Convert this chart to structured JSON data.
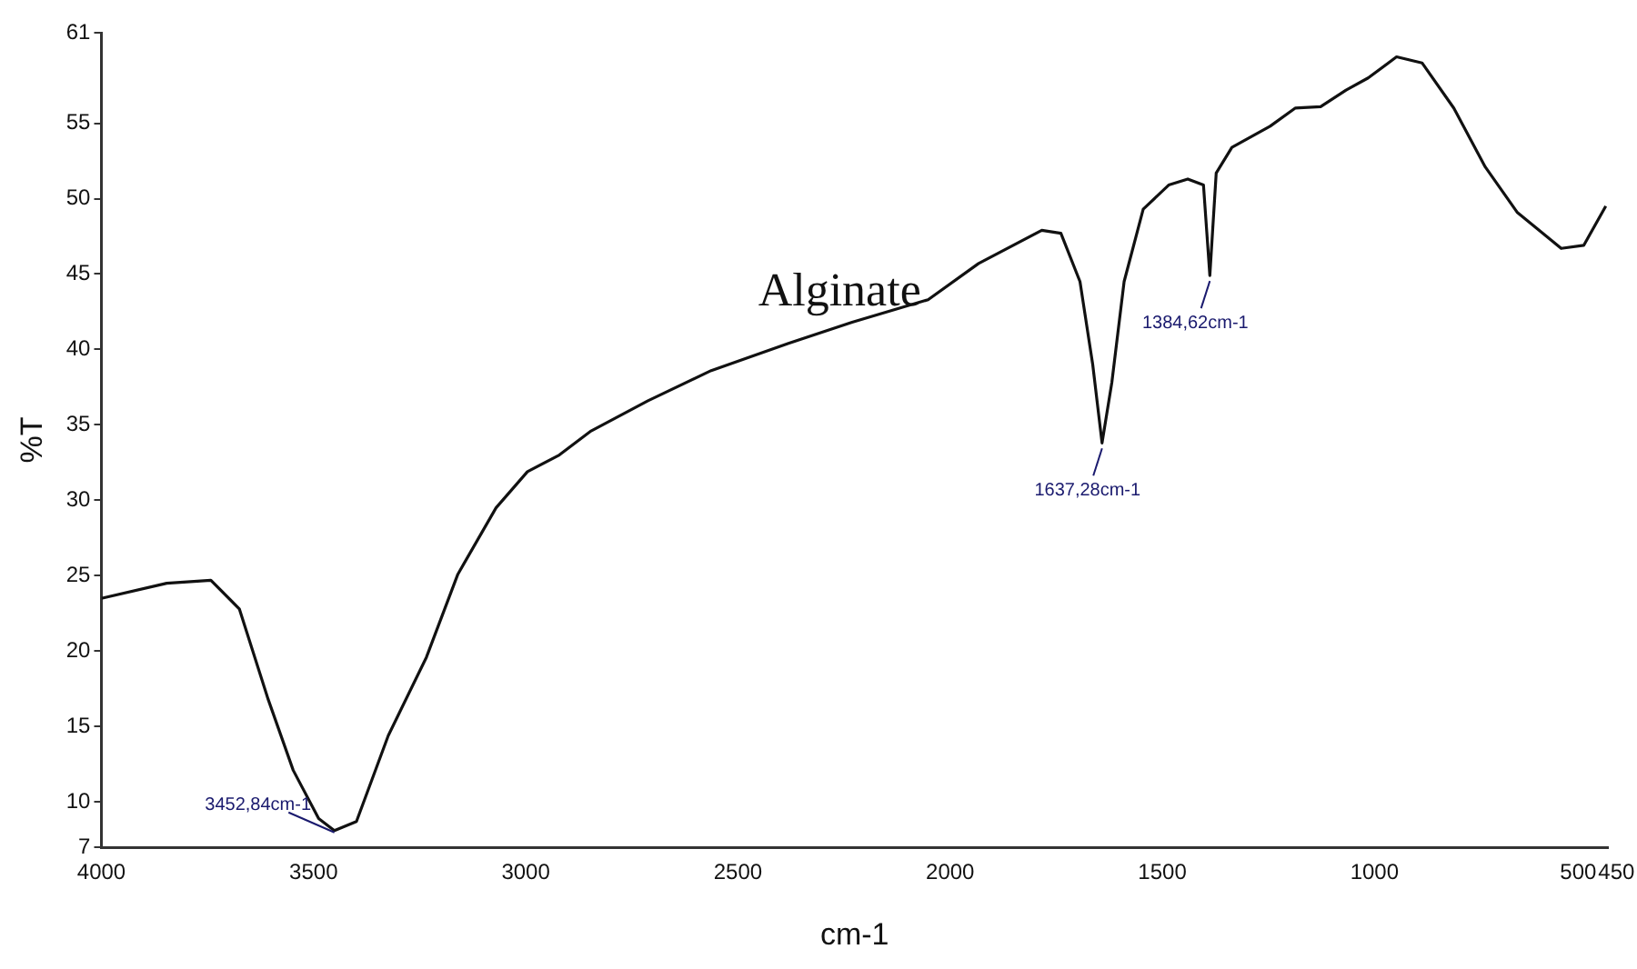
{
  "chart_data": {
    "type": "line",
    "xlabel": "cm-1",
    "ylabel": "%T",
    "xlim": [
      4000,
      450
    ],
    "xticks": [
      4000,
      3500,
      3000,
      2500,
      2000,
      1500,
      1000,
      500,
      450
    ],
    "ylim": [
      7,
      61
    ],
    "yticks": [
      7,
      10,
      15,
      20,
      25,
      30,
      35,
      40,
      45,
      50,
      55,
      61
    ],
    "grid": false,
    "legend": false,
    "marker": "none",
    "line_style": "solid",
    "series": [
      {
        "name": "Alginate",
        "color": "#111111",
        "x": [
          4000,
          3846,
          3742,
          3675,
          3607,
          3548,
          3488,
          3451,
          3399,
          3324,
          3234,
          3160,
          3070,
          2996,
          2921,
          2846,
          2712,
          2563,
          2381,
          2231,
          2052,
          1933,
          1784,
          1739,
          1694,
          1664,
          1642,
          1619,
          1590,
          1545,
          1485,
          1440,
          1403,
          1388,
          1373,
          1336,
          1246,
          1187,
          1127,
          1067,
          1015,
          948,
          888,
          813,
          739,
          664,
          560,
          507,
          455
        ],
        "values": [
          23.5,
          24.5,
          24.7,
          22.8,
          16.8,
          12.1,
          8.9,
          8.1,
          8.7,
          14.4,
          19.6,
          25.1,
          29.5,
          31.9,
          33.0,
          34.6,
          36.6,
          38.6,
          40.4,
          41.8,
          43.3,
          45.7,
          47.9,
          47.7,
          44.5,
          39.0,
          33.8,
          37.8,
          44.5,
          49.3,
          50.9,
          51.3,
          50.9,
          44.9,
          51.7,
          53.4,
          54.8,
          56.0,
          56.1,
          57.2,
          58.0,
          59.4,
          59.0,
          56.0,
          52.1,
          49.1,
          46.7,
          46.9,
          49.5
        ]
      }
    ],
    "annotations": [
      {
        "text": "3452,84cm-1",
        "x": 3451,
        "y": 8.1
      },
      {
        "text": "1637,28cm-1",
        "x": 1642,
        "y": 33.8
      },
      {
        "text": "1384,62cm-1",
        "x": 1388,
        "y": 44.9
      }
    ]
  }
}
